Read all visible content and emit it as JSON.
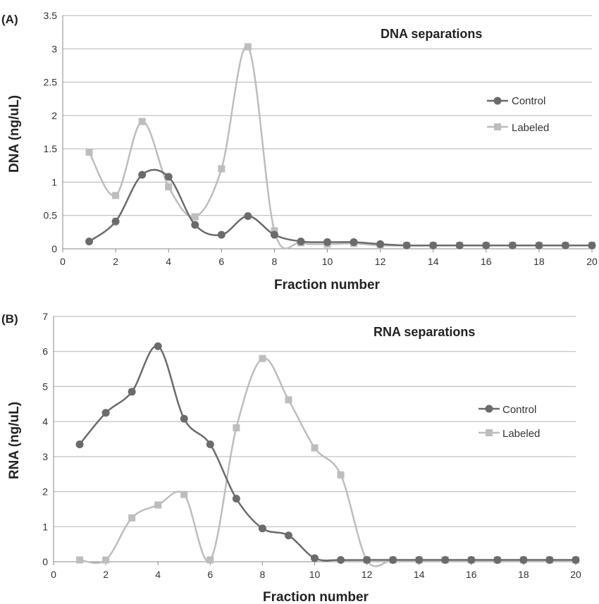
{
  "colors": {
    "control": "#6b6b6b",
    "labeled": "#bdbdbd"
  },
  "chart_data": [
    {
      "panel_label": "(A)",
      "type": "line",
      "title": "DNA separations",
      "xlabel": "Fraction number",
      "ylabel": "DNA (ng/uL)",
      "xlim": [
        0,
        20
      ],
      "ylim": [
        0,
        3.5
      ],
      "xticks": [
        0,
        2,
        4,
        6,
        8,
        10,
        12,
        14,
        16,
        18,
        20
      ],
      "yticks": [
        0,
        0.5,
        1,
        1.5,
        2,
        2.5,
        3,
        3.5
      ],
      "grid": true,
      "legend_position": "right",
      "x": [
        1,
        2,
        3,
        4,
        5,
        6,
        7,
        8,
        9,
        10,
        11,
        12,
        13,
        14,
        15,
        16,
        17,
        18,
        19,
        20
      ],
      "series": [
        {
          "name": "Control",
          "marker": "circle",
          "values": [
            0.11,
            0.41,
            1.11,
            1.08,
            0.36,
            0.21,
            0.49,
            0.21,
            0.11,
            0.1,
            0.1,
            0.07,
            0.05,
            0.05,
            0.05,
            0.05,
            0.05,
            0.05,
            0.05,
            0.05
          ]
        },
        {
          "name": "Labeled",
          "marker": "square",
          "values": [
            1.45,
            0.8,
            1.91,
            0.93,
            0.48,
            1.2,
            3.03,
            0.27,
            0.09,
            0.07,
            0.08,
            0.05,
            0.05,
            0.05,
            0.05,
            0.05,
            0.05,
            0.05,
            0.05,
            0.05
          ]
        }
      ]
    },
    {
      "panel_label": "(B)",
      "type": "line",
      "title": "RNA separations",
      "xlabel": "Fraction number",
      "ylabel": "RNA (ng/uL)",
      "xlim": [
        0,
        20
      ],
      "ylim": [
        0,
        7
      ],
      "xticks": [
        0,
        2,
        4,
        6,
        8,
        10,
        12,
        14,
        16,
        18,
        20
      ],
      "yticks": [
        0,
        1,
        2,
        3,
        4,
        5,
        6,
        7
      ],
      "grid": true,
      "legend_position": "right",
      "x": [
        1,
        2,
        3,
        4,
        5,
        6,
        7,
        8,
        9,
        10,
        11,
        12,
        13,
        14,
        15,
        16,
        17,
        18,
        19,
        20
      ],
      "series": [
        {
          "name": "Control",
          "marker": "circle",
          "values": [
            3.35,
            4.25,
            4.85,
            6.15,
            4.08,
            3.35,
            1.8,
            0.95,
            0.75,
            0.1,
            0.05,
            0.05,
            0.05,
            0.05,
            0.05,
            0.05,
            0.05,
            0.05,
            0.05,
            0.05
          ]
        },
        {
          "name": "Labeled",
          "marker": "square",
          "values": [
            0.05,
            0.05,
            1.25,
            1.62,
            1.92,
            0.05,
            3.82,
            5.8,
            4.62,
            3.25,
            2.48,
            0.05,
            0.05,
            0.05,
            0.05,
            0.05,
            0.05,
            0.05,
            0.05,
            0.05
          ]
        }
      ]
    }
  ]
}
